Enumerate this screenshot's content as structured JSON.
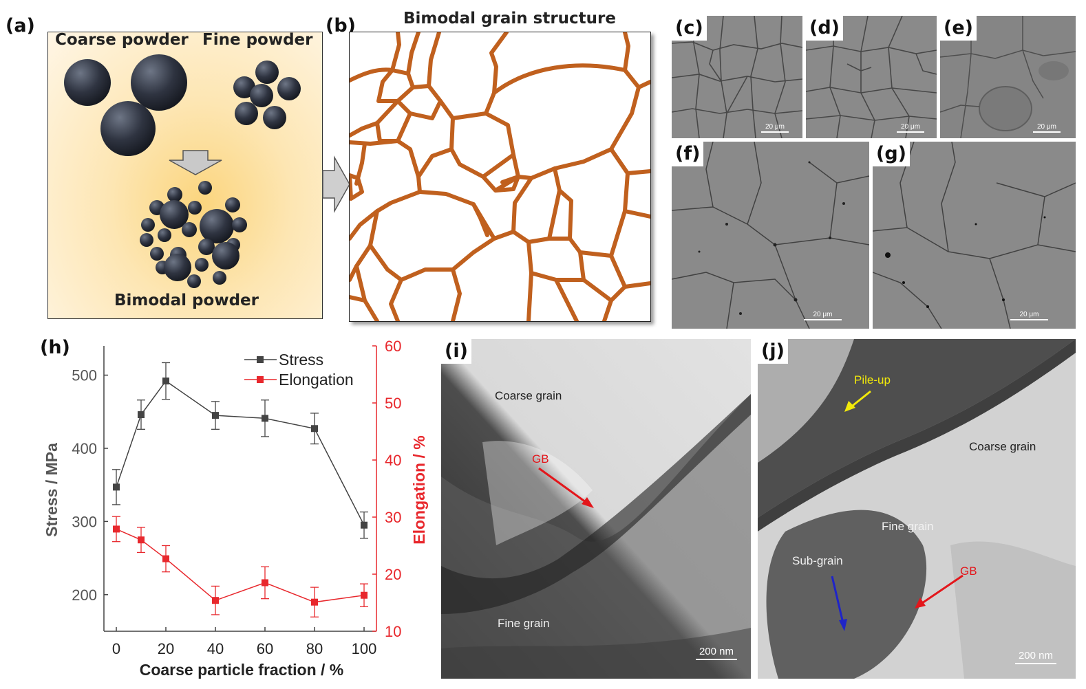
{
  "panel_a": {
    "label": "(a)",
    "coarse_label": "Coarse powder",
    "fine_label": "Fine powder",
    "bimodal_label": "Bimodal powder"
  },
  "panel_b": {
    "label": "(b)",
    "title": "Bimodal grain structure"
  },
  "sem_panels": [
    {
      "label": "(c)",
      "scale": "20 μm"
    },
    {
      "label": "(d)",
      "scale": "20 μm"
    },
    {
      "label": "(e)",
      "scale": "20 μm"
    },
    {
      "label": "(f)",
      "scale": "20 μm"
    },
    {
      "label": "(g)",
      "scale": "20 μm"
    }
  ],
  "panel_i": {
    "label": "(i)",
    "coarse": "Coarse grain",
    "gb": "GB",
    "fine": "Fine grain",
    "scale": "200 nm"
  },
  "panel_j": {
    "label": "(j)",
    "pileup": "Pile-up",
    "coarse": "Coarse grain",
    "fine": "Fine grain",
    "subgrain": "Sub-grain",
    "gb": "GB",
    "scale": "200 nm"
  },
  "colors": {
    "grain_boundary": "#c0601e",
    "stress": "#444444",
    "elongation": "#e8282d",
    "annotation_red": "#e3161b",
    "annotation_yellow": "#f2e90a",
    "annotation_blue": "#1f24c8"
  },
  "chart_data": {
    "label": "(h)",
    "type": "line",
    "xlabel": "Coarse particle fraction / %",
    "ylabel": "Stress / MPa",
    "y2label": "Elongation / %",
    "x": [
      0,
      10,
      20,
      40,
      60,
      80,
      100
    ],
    "xticks": [
      "0",
      "20",
      "40",
      "60",
      "80",
      "100"
    ],
    "xlim": [
      -5,
      105
    ],
    "ylim": [
      150,
      540
    ],
    "yticks": [
      "200",
      "300",
      "400",
      "500"
    ],
    "y2lim": [
      10,
      60
    ],
    "y2ticks": [
      "10",
      "20",
      "30",
      "40",
      "50",
      "60"
    ],
    "legend_position": "top-right",
    "series": [
      {
        "name": "Stress",
        "axis": "left",
        "values": [
          347,
          446,
          492,
          445,
          441,
          427,
          295
        ],
        "errors": [
          24,
          20,
          25,
          19,
          25,
          21,
          18
        ]
      },
      {
        "name": "Elongation",
        "axis": "right",
        "values": [
          27.9,
          26.0,
          22.7,
          15.4,
          18.5,
          15.1,
          16.3
        ],
        "errors": [
          2.2,
          2.2,
          2.3,
          2.5,
          2.8,
          2.6,
          2.0
        ]
      }
    ]
  }
}
